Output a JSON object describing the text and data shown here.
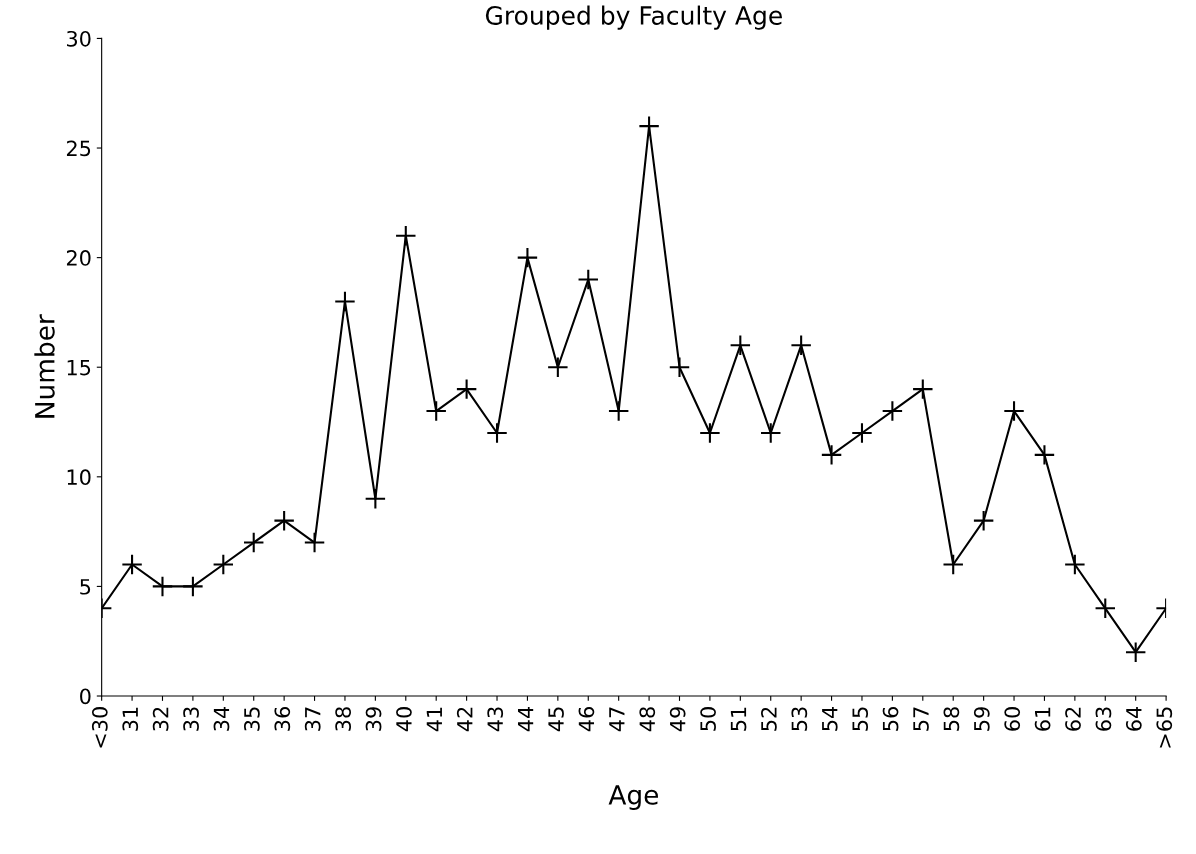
{
  "chart_data": {
    "type": "line",
    "title": "Grouped by Faculty Age",
    "xlabel": "Age",
    "ylabel": "Number",
    "categories": [
      "<30",
      "31",
      "32",
      "33",
      "34",
      "35",
      "36",
      "37",
      "38",
      "39",
      "40",
      "41",
      "42",
      "43",
      "44",
      "45",
      "46",
      "47",
      "48",
      "49",
      "50",
      "51",
      "52",
      "53",
      "54",
      "55",
      "56",
      "57",
      "58",
      "59",
      "60",
      "61",
      "62",
      "63",
      "64",
      ">65"
    ],
    "series": [
      {
        "color": "#000000",
        "values": [
          4,
          6,
          5,
          5,
          6,
          7,
          8,
          7,
          18,
          9,
          21,
          13,
          14,
          12,
          20,
          15,
          19,
          13,
          26,
          15,
          12,
          16,
          12,
          16,
          11,
          12,
          13,
          14,
          6,
          8,
          13,
          11,
          6,
          4,
          2,
          4
        ]
      }
    ],
    "ylim": [
      0,
      30
    ],
    "yticks": [
      0,
      5,
      10,
      15,
      20,
      25,
      30
    ],
    "grid": false,
    "legend": false,
    "marker": "cross",
    "line_style": "solid"
  }
}
